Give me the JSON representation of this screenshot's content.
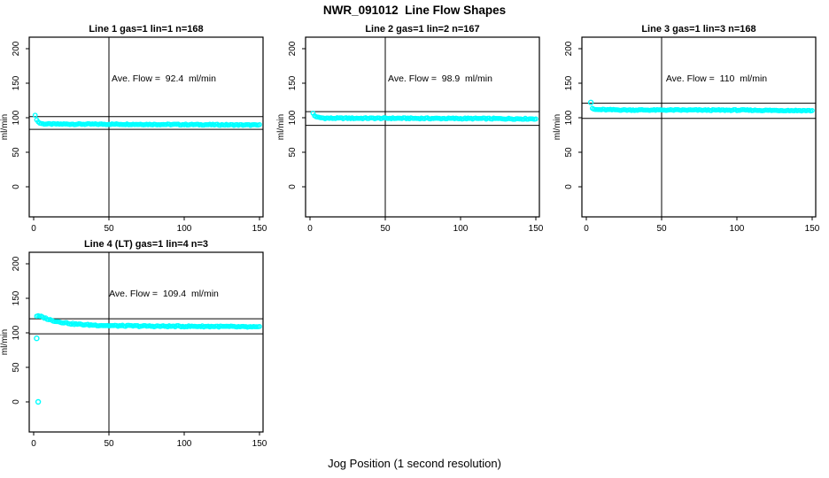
{
  "page": {
    "main_title": "NWR_091012  Line Flow Shapes",
    "xlabel": "Jog Position (1 second resolution)"
  },
  "chart_data": [
    {
      "type": "scatter",
      "title": "Line 1 gas=1 lin=1 n=168",
      "annotation": "Ave. Flow =  92.4  ml/min",
      "ave_flow_ml_min": 92.4,
      "n": 168,
      "ylabel": "ml/min",
      "xticks": [
        0,
        50,
        100,
        150
      ],
      "yticks": [
        0,
        50,
        100,
        150,
        200
      ],
      "xlim": [
        -3,
        155
      ],
      "ylim": [
        -45,
        215
      ],
      "point_color": "#00FFFF",
      "limit_lines": [
        101.6,
        83.2
      ],
      "vline_x": 50,
      "noise": 0.7,
      "series_breakpoints": [
        [
          1,
          103
        ],
        [
          2,
          97.5
        ],
        [
          3,
          94
        ],
        [
          4,
          92.3
        ],
        [
          6,
          91.2
        ],
        [
          12,
          90.8
        ],
        [
          60,
          90.6
        ],
        [
          110,
          90
        ],
        [
          150,
          89.4
        ]
      ],
      "outliers": []
    },
    {
      "type": "scatter",
      "title": "Line 2 gas=1 lin=2 n=167",
      "annotation": "Ave. Flow =  98.9  ml/min",
      "ave_flow_ml_min": 98.9,
      "n": 167,
      "ylabel": "ml/min",
      "xticks": [
        0,
        50,
        100,
        150
      ],
      "yticks": [
        0,
        50,
        100,
        150,
        200
      ],
      "xlim": [
        -3,
        155
      ],
      "ylim": [
        -45,
        215
      ],
      "point_color": "#00FFFF",
      "limit_lines": [
        108.8,
        89.0
      ],
      "vline_x": 50,
      "noise": 0.8,
      "series_breakpoints": [
        [
          2,
          106.5
        ],
        [
          3,
          103
        ],
        [
          5,
          100.5
        ],
        [
          10,
          99.3
        ],
        [
          60,
          99.2
        ],
        [
          150,
          98.4
        ]
      ],
      "outliers": []
    },
    {
      "type": "scatter",
      "title": "Line 3 gas=1 lin=3 n=168",
      "annotation": "Ave. Flow =  110  ml/min",
      "ave_flow_ml_min": 110,
      "n": 168,
      "ylabel": "ml/min",
      "xticks": [
        0,
        50,
        100,
        150
      ],
      "yticks": [
        0,
        50,
        100,
        150,
        200
      ],
      "xlim": [
        -3,
        155
      ],
      "ylim": [
        -45,
        215
      ],
      "point_color": "#00FFFF",
      "limit_lines": [
        121.0,
        99.0
      ],
      "vline_x": 50,
      "noise": 0.7,
      "series_breakpoints": [
        [
          4,
          113
        ],
        [
          6,
          111.8
        ],
        [
          30,
          111.2
        ],
        [
          100,
          111
        ],
        [
          150,
          110.3
        ]
      ],
      "outliers": [
        [
          3,
          122
        ]
      ]
    },
    {
      "type": "scatter",
      "title": "Line 4 (LT) gas=1 lin=4 n=3",
      "annotation": "Ave. Flow =  109.4  ml/min",
      "ave_flow_ml_min": 109.4,
      "n": 3,
      "ylabel": "ml/min",
      "xticks": [
        0,
        50,
        100,
        150
      ],
      "yticks": [
        0,
        50,
        100,
        150,
        200
      ],
      "xlim": [
        -3,
        155
      ],
      "ylim": [
        -45,
        215
      ],
      "point_color": "#00FFFF",
      "limit_lines": [
        120.3,
        98.5
      ],
      "vline_x": 50,
      "noise": 0.9,
      "series_breakpoints": [
        [
          2,
          124.5
        ],
        [
          5,
          123.5
        ],
        [
          8,
          121
        ],
        [
          12,
          118
        ],
        [
          18,
          115.5
        ],
        [
          25,
          113.2
        ],
        [
          35,
          111.6
        ],
        [
          50,
          110.4
        ],
        [
          80,
          109.6
        ],
        [
          120,
          109.3
        ],
        [
          150,
          108.2
        ]
      ],
      "outliers": [
        [
          2,
          92
        ],
        [
          3,
          0
        ]
      ]
    }
  ]
}
